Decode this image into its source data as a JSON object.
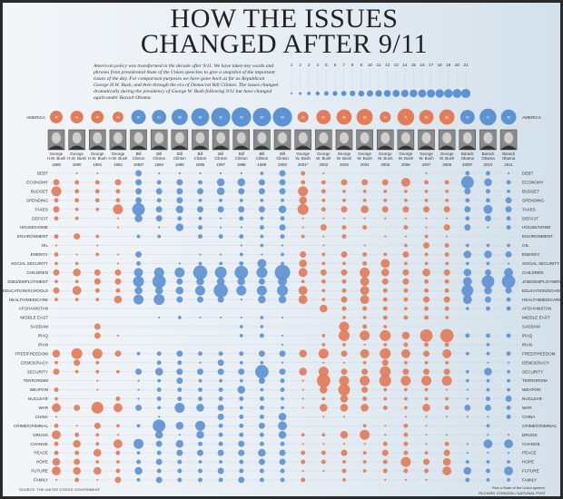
{
  "title_line1": "HOW THE ISSUES",
  "title_line2": "CHANGED AFTER 9/11",
  "intro": "American policy was transformed in the decade after 9/11. We have taken key words and phrases from presidential State of the Union speeches to give a snapshot of the important issues of the day. For comparison purposes we have gone back as far as Republican George H.W. Bush, and then through the era of Democrat Bill Clinton. The issues changed dramatically during the presidency of George W. Bush following 9/11 but have changed again under Barack Obama.",
  "source": "SOURCE: THE UNITED STATES GOVERNMENT",
  "footnote": "*Not a State of the Union speech.",
  "credit": "RICHARD JOHNSON / NATIONAL POST",
  "colors": {
    "republican": "#e27c59",
    "democrat": "#5e93d3"
  },
  "chart_data": {
    "type": "bubble-matrix",
    "scale_legend": [
      1,
      2,
      3,
      4,
      5,
      6,
      7,
      8,
      9,
      10,
      11,
      12,
      13,
      14,
      15,
      16,
      17,
      18,
      19,
      20,
      21
    ],
    "america_label": "AMERICA",
    "columns": [
      {
        "president": "George H.W. Bush",
        "year": "1989",
        "party": "republican"
      },
      {
        "president": "George H.W. Bush",
        "year": "1990",
        "party": "republican"
      },
      {
        "president": "George H.W. Bush",
        "year": "1991",
        "party": "republican"
      },
      {
        "president": "George H.W. Bush",
        "year": "1992",
        "party": "republican"
      },
      {
        "president": "Bill Clinton",
        "year": "1993*",
        "party": "democrat"
      },
      {
        "president": "Bill Clinton",
        "year": "1994",
        "party": "democrat"
      },
      {
        "president": "Bill Clinton",
        "year": "1995",
        "party": "democrat"
      },
      {
        "president": "Bill Clinton",
        "year": "1996",
        "party": "democrat"
      },
      {
        "president": "Bill Clinton",
        "year": "1997",
        "party": "democrat"
      },
      {
        "president": "Bill Clinton",
        "year": "1998",
        "party": "democrat"
      },
      {
        "president": "Bill Clinton",
        "year": "1999",
        "party": "democrat"
      },
      {
        "president": "Bill Clinton",
        "year": "2000",
        "party": "democrat"
      },
      {
        "president": "George W. Bush",
        "year": "2001*",
        "party": "republican"
      },
      {
        "president": "George W. Bush",
        "year": "2002",
        "party": "republican"
      },
      {
        "president": "George W. Bush",
        "year": "2003",
        "party": "republican"
      },
      {
        "president": "George W. Bush",
        "year": "2004",
        "party": "republican"
      },
      {
        "president": "George W. Bush",
        "year": "2005",
        "party": "republican"
      },
      {
        "president": "George W. Bush",
        "year": "2006",
        "party": "republican"
      },
      {
        "president": "George W. Bush",
        "year": "2007",
        "party": "republican"
      },
      {
        "president": "George W. Bush",
        "year": "2008",
        "party": "republican"
      },
      {
        "president": "Barack Obama",
        "year": "2009*",
        "party": "democrat"
      },
      {
        "president": "Barack Obama",
        "year": "2010",
        "party": "democrat"
      },
      {
        "president": "Barack Obama",
        "year": "2011",
        "party": "democrat"
      }
    ],
    "america_values": [
      40,
      41,
      40,
      29,
      52,
      51,
      66,
      80,
      92,
      95,
      84,
      93,
      30,
      52,
      58,
      66,
      31,
      71,
      52,
      58,
      52,
      71,
      58
    ],
    "rows": [
      {
        "term": "DEBT",
        "values": [
          0,
          1,
          1,
          0,
          10,
          1,
          1,
          1,
          1,
          1,
          3,
          10,
          5,
          1,
          0,
          0,
          0,
          0,
          1,
          0,
          5,
          5,
          1
        ]
      },
      {
        "term": "ECONOMY",
        "values": [
          10,
          5,
          5,
          10,
          10,
          5,
          10,
          5,
          15,
          15,
          10,
          10,
          5,
          5,
          10,
          10,
          10,
          20,
          5,
          5,
          40,
          15,
          5
        ]
      },
      {
        "term": "BUDGET",
        "values": [
          25,
          5,
          5,
          5,
          10,
          10,
          10,
          10,
          15,
          10,
          10,
          10,
          25,
          5,
          3,
          3,
          3,
          3,
          3,
          3,
          10,
          5,
          3
        ]
      },
      {
        "term": "SPENDING",
        "values": [
          5,
          5,
          5,
          5,
          10,
          5,
          10,
          3,
          3,
          3,
          3,
          3,
          15,
          3,
          3,
          3,
          3,
          3,
          3,
          3,
          5,
          5,
          10
        ]
      },
      {
        "term": "TAXES",
        "values": [
          10,
          3,
          3,
          25,
          40,
          10,
          15,
          10,
          10,
          10,
          10,
          15,
          30,
          5,
          10,
          15,
          10,
          10,
          10,
          10,
          10,
          20,
          10
        ]
      },
      {
        "term": "DEFICIT",
        "values": [
          5,
          3,
          0,
          1,
          15,
          10,
          5,
          3,
          1,
          5,
          3,
          5,
          1,
          1,
          1,
          1,
          1,
          1,
          1,
          1,
          5,
          10,
          5
        ]
      },
      {
        "term": "HOUSE/HOME",
        "values": [
          0,
          0,
          0,
          1,
          0,
          1,
          15,
          5,
          1,
          1,
          5,
          10,
          1,
          10,
          5,
          5,
          0,
          5,
          1,
          10,
          10,
          1,
          5
        ]
      },
      {
        "term": "ENVIRONMENT",
        "values": [
          5,
          10,
          3,
          0,
          3,
          3,
          0,
          5,
          5,
          5,
          3,
          5,
          3,
          1,
          5,
          0,
          1,
          1,
          3,
          1,
          0,
          0,
          0
        ]
      },
      {
        "term": "OIL",
        "values": [
          1,
          0,
          1,
          0,
          0,
          0,
          0,
          0,
          0,
          1,
          3,
          1,
          0,
          1,
          0,
          1,
          0,
          3,
          10,
          5,
          3,
          3,
          3
        ]
      },
      {
        "term": "ENERGY",
        "values": [
          5,
          1,
          3,
          1,
          10,
          0,
          0,
          1,
          1,
          3,
          1,
          3,
          10,
          3,
          10,
          5,
          3,
          10,
          3,
          5,
          15,
          15,
          10
        ]
      },
      {
        "term": "SOCIAL SECURITY",
        "values": [
          3,
          3,
          0,
          1,
          5,
          0,
          1,
          3,
          3,
          5,
          20,
          3,
          15,
          3,
          3,
          5,
          20,
          3,
          3,
          3,
          3,
          3,
          1
        ]
      },
      {
        "term": "CHILDREN",
        "values": [
          10,
          15,
          10,
          10,
          20,
          25,
          25,
          50,
          35,
          45,
          30,
          60,
          20,
          10,
          10,
          25,
          15,
          10,
          15,
          10,
          15,
          10,
          20
        ]
      },
      {
        "term": "JOBS/EMPLOYMENT",
        "values": [
          3,
          3,
          10,
          10,
          30,
          45,
          10,
          15,
          15,
          15,
          10,
          20,
          3,
          5,
          5,
          20,
          10,
          10,
          5,
          5,
          20,
          40,
          45
        ]
      },
      {
        "term": "EDUCATION/SCHOOLS",
        "values": [
          10,
          20,
          5,
          5,
          15,
          15,
          15,
          25,
          50,
          25,
          25,
          30,
          20,
          3,
          5,
          20,
          5,
          5,
          5,
          5,
          35,
          15,
          10
        ]
      },
      {
        "term": "HEALTH/MEDICARE",
        "values": [
          3,
          3,
          3,
          15,
          25,
          30,
          10,
          10,
          10,
          1,
          15,
          15,
          20,
          3,
          10,
          20,
          5,
          5,
          10,
          10,
          20,
          10,
          5
        ]
      },
      {
        "term": "AFGHANISTAN",
        "values": [
          0,
          0,
          0,
          0,
          0,
          0,
          0,
          0,
          0,
          0,
          0,
          0,
          0,
          15,
          5,
          5,
          5,
          3,
          5,
          5,
          3,
          5,
          5
        ]
      },
      {
        "term": "MIDDLE EAST",
        "values": [
          0,
          0,
          0,
          0,
          0,
          1,
          3,
          1,
          1,
          1,
          3,
          1,
          0,
          0,
          3,
          3,
          5,
          5,
          5,
          3,
          0,
          0,
          0
        ]
      },
      {
        "term": "SADDAM",
        "values": [
          0,
          0,
          10,
          0,
          0,
          0,
          0,
          0,
          0,
          3,
          3,
          0,
          0,
          0,
          25,
          5,
          3,
          0,
          0,
          0,
          0,
          0,
          0
        ]
      },
      {
        "term": "IRAQ",
        "values": [
          0,
          0,
          10,
          1,
          0,
          0,
          0,
          0,
          0,
          3,
          5,
          1,
          0,
          3,
          30,
          25,
          30,
          15,
          40,
          45,
          5,
          5,
          5
        ]
      },
      {
        "term": "IRAN",
        "values": [
          0,
          0,
          0,
          0,
          0,
          0,
          0,
          0,
          0,
          0,
          0,
          1,
          0,
          3,
          3,
          1,
          3,
          5,
          5,
          5,
          0,
          3,
          0
        ]
      },
      {
        "term": "FREE/FREEDOM",
        "values": [
          15,
          30,
          25,
          10,
          3,
          5,
          10,
          5,
          5,
          5,
          10,
          10,
          15,
          25,
          10,
          20,
          30,
          20,
          10,
          20,
          3,
          3,
          5
        ]
      },
      {
        "term": "DEMOCRACY",
        "values": [
          3,
          10,
          3,
          0,
          0,
          5,
          5,
          1,
          10,
          3,
          3,
          1,
          0,
          1,
          1,
          3,
          10,
          3,
          3,
          3,
          0,
          1,
          1
        ]
      },
      {
        "term": "SECURITY",
        "values": [
          10,
          3,
          3,
          3,
          10,
          15,
          10,
          10,
          10,
          10,
          45,
          10,
          15,
          25,
          10,
          10,
          30,
          10,
          10,
          10,
          3,
          15,
          3
        ]
      },
      {
        "term": "TERRORISM",
        "values": [
          0,
          0,
          1,
          0,
          1,
          3,
          10,
          3,
          3,
          3,
          10,
          5,
          1,
          45,
          25,
          25,
          35,
          25,
          25,
          25,
          3,
          3,
          3
        ]
      },
      {
        "term": "WEAPON",
        "values": [
          5,
          0,
          1,
          0,
          1,
          5,
          5,
          5,
          5,
          15,
          3,
          5,
          1,
          15,
          35,
          10,
          3,
          3,
          3,
          1,
          1,
          3,
          3
        ]
      },
      {
        "term": "NUCLEAR",
        "values": [
          3,
          0,
          0,
          5,
          1,
          5,
          5,
          5,
          5,
          5,
          5,
          3,
          1,
          3,
          15,
          5,
          3,
          3,
          3,
          3,
          1,
          5,
          10
        ]
      },
      {
        "term": "WAR",
        "values": [
          20,
          10,
          35,
          20,
          10,
          3,
          25,
          15,
          10,
          3,
          5,
          3,
          1,
          15,
          15,
          15,
          5,
          3,
          15,
          5,
          10,
          10,
          5
        ]
      },
      {
        "term": "CHINA",
        "values": [
          1,
          0,
          0,
          0,
          0,
          1,
          0,
          0,
          10,
          5,
          5,
          15,
          0,
          1,
          1,
          0,
          0,
          1,
          1,
          1,
          1,
          1,
          5
        ]
      },
      {
        "term": "CRIME/CRIMINAL",
        "values": [
          5,
          1,
          10,
          3,
          3,
          40,
          15,
          25,
          5,
          5,
          10,
          20,
          0,
          0,
          0,
          3,
          1,
          5,
          1,
          0,
          0,
          3,
          0
        ]
      },
      {
        "term": "DRUGS",
        "values": [
          20,
          5,
          3,
          1,
          0,
          15,
          1,
          15,
          5,
          5,
          5,
          15,
          3,
          3,
          15,
          25,
          1,
          5,
          1,
          1,
          0,
          1,
          1
        ]
      },
      {
        "term": "CHANGE",
        "values": [
          5,
          15,
          3,
          20,
          25,
          10,
          15,
          5,
          5,
          10,
          5,
          5,
          1,
          1,
          1,
          1,
          5,
          5,
          1,
          5,
          1,
          20,
          20
        ]
      },
      {
        "term": "PEACE",
        "values": [
          5,
          5,
          15,
          5,
          3,
          5,
          10,
          10,
          10,
          10,
          15,
          10,
          5,
          5,
          10,
          3,
          10,
          5,
          3,
          10,
          1,
          1,
          1
        ]
      },
      {
        "term": "HOPE",
        "values": [
          15,
          10,
          3,
          3,
          5,
          10,
          5,
          3,
          3,
          5,
          10,
          10,
          5,
          5,
          3,
          3,
          5,
          25,
          10,
          15,
          3,
          3,
          3
        ]
      },
      {
        "term": "FUTURE",
        "values": [
          20,
          15,
          15,
          5,
          15,
          5,
          5,
          5,
          10,
          5,
          5,
          5,
          1,
          1,
          5,
          3,
          5,
          5,
          5,
          20,
          15,
          5,
          20
        ]
      },
      {
        "term": "FAMILY",
        "values": [
          1,
          5,
          1,
          10,
          3,
          10,
          5,
          5,
          5,
          10,
          5,
          5,
          5,
          0,
          3,
          0,
          1,
          1,
          1,
          0,
          5,
          3,
          3
        ]
      }
    ]
  }
}
